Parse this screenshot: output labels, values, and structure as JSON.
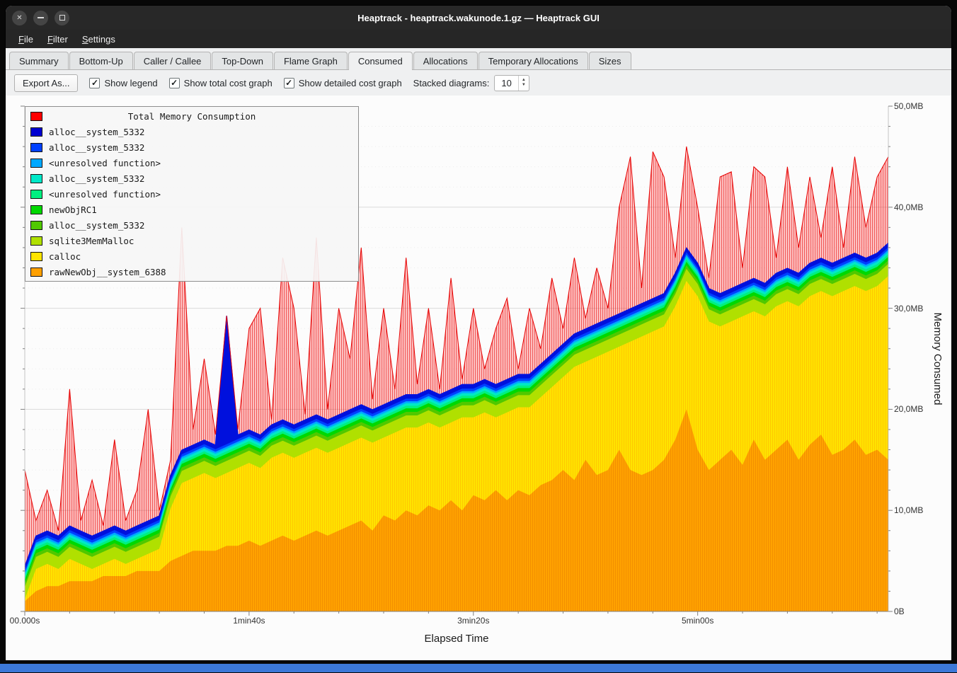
{
  "window": {
    "title": "Heaptrack - heaptrack.wakunode.1.gz — Heaptrack GUI"
  },
  "icons": {
    "close": "✕",
    "check": "✓",
    "spin_up": "▲",
    "spin_down": "▼"
  },
  "menubar": {
    "items": [
      {
        "label": "File"
      },
      {
        "label": "Filter"
      },
      {
        "label": "Settings"
      }
    ]
  },
  "tabs": {
    "items": [
      {
        "label": "Summary"
      },
      {
        "label": "Bottom-Up"
      },
      {
        "label": "Caller / Callee"
      },
      {
        "label": "Top-Down"
      },
      {
        "label": "Flame Graph"
      },
      {
        "label": "Consumed",
        "active": true
      },
      {
        "label": "Allocations"
      },
      {
        "label": "Temporary Allocations"
      },
      {
        "label": "Sizes"
      }
    ]
  },
  "toolbar": {
    "export_label": "Export As...",
    "checkboxes": [
      {
        "label": "Show legend",
        "checked": true
      },
      {
        "label": "Show total cost graph",
        "checked": true
      },
      {
        "label": "Show detailed cost graph",
        "checked": true
      }
    ],
    "stacked_label": "Stacked diagrams:",
    "stacked_value": "10"
  },
  "legend": {
    "title": "Total Memory Consumption",
    "items": [
      {
        "label": "Total Memory Consumption",
        "color": "#ff0000"
      },
      {
        "label": "alloc__system_5332",
        "color": "#0000d0"
      },
      {
        "label": "alloc__system_5332",
        "color": "#0040ff"
      },
      {
        "label": "<unresolved function>",
        "color": "#00a8ff"
      },
      {
        "label": "alloc__system_5332",
        "color": "#00e8c8"
      },
      {
        "label": "<unresolved function>",
        "color": "#00f080"
      },
      {
        "label": "newObjRC1",
        "color": "#00d800"
      },
      {
        "label": "alloc__system_5332",
        "color": "#50c800"
      },
      {
        "label": "sqlite3MemMalloc",
        "color": "#b0e000"
      },
      {
        "label": "calloc",
        "color": "#ffe400"
      },
      {
        "label": "rawNewObj__system_6388",
        "color": "#ffa000"
      }
    ]
  },
  "axes": {
    "x_label": "Elapsed Time",
    "y_label": "Memory Consumed",
    "x_ticks": [
      {
        "t": 0,
        "label": "00.000s"
      },
      {
        "t": 100,
        "label": "1min40s"
      },
      {
        "t": 200,
        "label": "3min20s"
      },
      {
        "t": 300,
        "label": "5min00s"
      }
    ],
    "y_ticks": [
      {
        "mb": 0,
        "label": "0B"
      },
      {
        "mb": 10,
        "label": "10,0MB"
      },
      {
        "mb": 20,
        "label": "20,0MB"
      },
      {
        "mb": 30,
        "label": "30,0MB"
      },
      {
        "mb": 40,
        "label": "40,0MB"
      },
      {
        "mb": 50,
        "label": "50,0MB"
      }
    ]
  },
  "chart_data": {
    "type": "area",
    "title": "Total Memory Consumption",
    "xlabel": "Elapsed Time",
    "ylabel": "Memory Consumed",
    "x_unit": "seconds",
    "y_unit": "MB",
    "xlim": [
      0,
      385
    ],
    "ylim_mb": [
      0,
      50
    ],
    "legend_position": "top-left",
    "grid": true,
    "x": [
      0,
      5,
      10,
      15,
      20,
      25,
      30,
      35,
      40,
      45,
      50,
      55,
      60,
      65,
      70,
      75,
      80,
      85,
      90,
      95,
      100,
      105,
      110,
      115,
      120,
      125,
      130,
      135,
      140,
      145,
      150,
      155,
      160,
      165,
      170,
      175,
      180,
      185,
      190,
      195,
      200,
      205,
      210,
      215,
      220,
      225,
      230,
      235,
      240,
      245,
      250,
      255,
      260,
      265,
      270,
      275,
      280,
      285,
      290,
      295,
      300,
      305,
      310,
      315,
      320,
      325,
      330,
      335,
      340,
      345,
      350,
      355,
      360,
      365,
      370,
      375,
      380,
      385
    ],
    "series": [
      {
        "name": "rawNewObj__system_6388",
        "color": "#ffa000",
        "pattern": "orange",
        "values": [
          1,
          2,
          2.5,
          2.5,
          3,
          3,
          3,
          3.5,
          3.5,
          3.5,
          4,
          4,
          4,
          5,
          5.5,
          6,
          6,
          6,
          6.5,
          6.5,
          7,
          6.5,
          7,
          7.5,
          7,
          7.5,
          8,
          7.5,
          8,
          8.5,
          9,
          8,
          9.5,
          9,
          10,
          9.5,
          10.5,
          10,
          11,
          10,
          11.5,
          11,
          12,
          11,
          12,
          11.5,
          12.5,
          13,
          14,
          13,
          15,
          13.5,
          14,
          16,
          14,
          13.5,
          14,
          15,
          17,
          20,
          16,
          14,
          15,
          16,
          14.5,
          17,
          15,
          16,
          17,
          15,
          16.5,
          17.5,
          15.5,
          16,
          17,
          15.5,
          16,
          15
        ]
      },
      {
        "name": "calloc",
        "color": "#ffe400",
        "pattern": "yellow",
        "values": [
          0.2,
          2.2,
          2.2,
          1.7,
          2.2,
          1.7,
          1.2,
          1.2,
          1.7,
          1.2,
          1.2,
          1.7,
          2.2,
          5.2,
          7.2,
          7.2,
          7.7,
          7.2,
          7.2,
          7.7,
          7.7,
          7.7,
          8.2,
          8.2,
          8.2,
          8.2,
          8.2,
          8.2,
          8.2,
          8.2,
          8.2,
          8.7,
          7.7,
          8.7,
          8.2,
          8.7,
          8.2,
          8.2,
          7.7,
          9.2,
          7.7,
          8.7,
          7.2,
          8.7,
          8.2,
          8.7,
          8.7,
          9.2,
          9.2,
          11.2,
          9.7,
          11.7,
          11.7,
          10.2,
          12.7,
          13.7,
          13.7,
          13.2,
          13.2,
          12.7,
          15.2,
          14.7,
          13.2,
          12.7,
          14.7,
          12.7,
          14.2,
          14.2,
          13.7,
          15.2,
          14.7,
          14.2,
          15.7,
          15.7,
          15.2,
          16.2,
          16.2,
          18.2
        ]
      },
      {
        "name": "sqlite3MemMalloc",
        "color": "#b0e000",
        "const": 1.2
      },
      {
        "name": "alloc__system_5332",
        "color": "#50c800",
        "const": 0.35
      },
      {
        "name": "newObjRC1",
        "color": "#00d800",
        "const": 0.35
      },
      {
        "name": "<unresolved function>",
        "color": "#00f080",
        "const": 0.25
      },
      {
        "name": "alloc__system_5332",
        "color": "#00e8c8",
        "const": 0.25
      },
      {
        "name": "<unresolved function>",
        "color": "#00a8ff",
        "const": 0.2
      },
      {
        "name": "alloc__system_5332",
        "color": "#0040ff",
        "const": 0.25
      },
      {
        "name": "alloc__system_5332",
        "color": "#0010dd",
        "const": 0.4,
        "spikes": {
          "18": 12.3
        }
      }
    ],
    "total": {
      "name": "Total Memory Consumption",
      "color": "#ff0000",
      "values": [
        14,
        9,
        12,
        8,
        22,
        9,
        13,
        8.5,
        17,
        9,
        12,
        20,
        10,
        15,
        38,
        18,
        25,
        17.5,
        29,
        18,
        28,
        30,
        19,
        35,
        30,
        19.5,
        37,
        20,
        30,
        25,
        36,
        21,
        30,
        22,
        35,
        22.5,
        30,
        22,
        33,
        23,
        30,
        24,
        28,
        31,
        24,
        30,
        26,
        33,
        28,
        35,
        29,
        34,
        30,
        40,
        45,
        32,
        45.5,
        43,
        35,
        46,
        40,
        33,
        43,
        43.5,
        34,
        44,
        43,
        35,
        44,
        36,
        43,
        37,
        44,
        36,
        45,
        38,
        43,
        45
      ]
    }
  }
}
